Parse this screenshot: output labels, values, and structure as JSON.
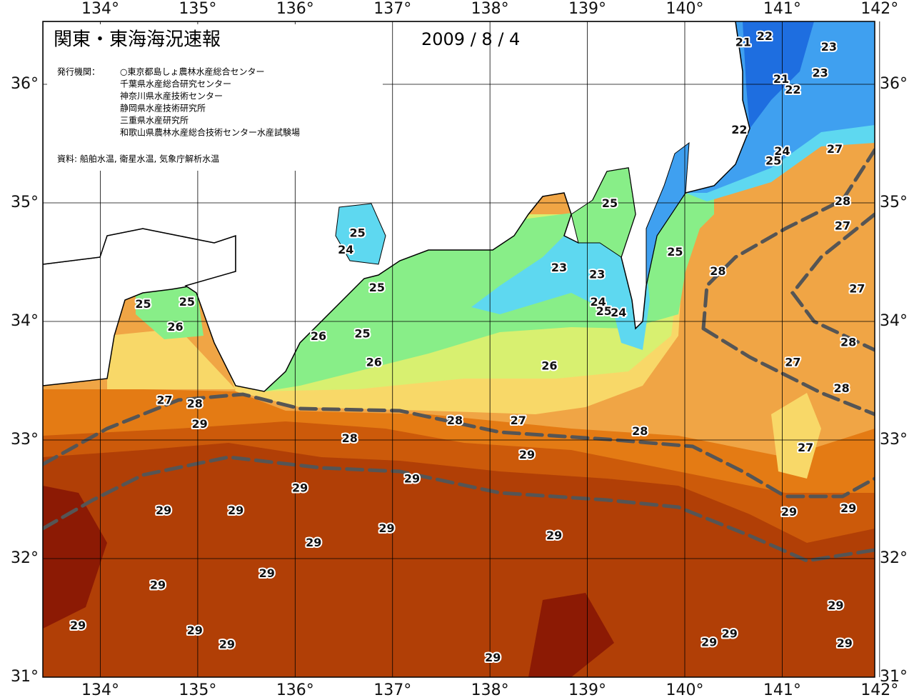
{
  "header": {
    "title": "関東・東海海況速報",
    "date": "2009 / 8 / 4",
    "publisher_label": "発行機関：",
    "publishers": [
      "○東京都島しょ農林水産総合センター",
      "千葉県水産総合研究センター",
      "神奈川県水産技術センター",
      "静岡県水産技術研究所",
      "三重県水産研究所",
      "和歌山県農林水産総合技術センター水産試験場"
    ],
    "source": "資料: 船舶水温, 衛星水温, 気象庁解析水温"
  },
  "map": {
    "xlim": [
      133.41,
      141.95
    ],
    "ylim": [
      31.0,
      36.53
    ],
    "grid": true,
    "xticks": [
      {
        "value": 134,
        "label": "134°"
      },
      {
        "value": 135,
        "label": "135°"
      },
      {
        "value": 136,
        "label": "136°"
      },
      {
        "value": 137,
        "label": "137°"
      },
      {
        "value": 138,
        "label": "138°"
      },
      {
        "value": 139,
        "label": "139°"
      },
      {
        "value": 140,
        "label": "140°"
      },
      {
        "value": 141,
        "label": "141°"
      },
      {
        "value": 142,
        "label": "142°"
      }
    ],
    "yticks": [
      {
        "value": 31,
        "label": "31°"
      },
      {
        "value": 32,
        "label": "32°"
      },
      {
        "value": 33,
        "label": "33°"
      },
      {
        "value": 34,
        "label": "34°"
      },
      {
        "value": 35,
        "label": "35°"
      },
      {
        "value": 36,
        "label": "36°"
      }
    ],
    "contour_labels": [
      {
        "text": "21",
        "lon": 140.6,
        "lat": 36.35
      },
      {
        "text": "22",
        "lon": 140.82,
        "lat": 36.4
      },
      {
        "text": "23",
        "lon": 141.48,
        "lat": 36.31
      },
      {
        "text": "23",
        "lon": 141.39,
        "lat": 36.09
      },
      {
        "text": "21",
        "lon": 140.99,
        "lat": 36.04
      },
      {
        "text": "22",
        "lon": 141.11,
        "lat": 35.95
      },
      {
        "text": "22",
        "lon": 140.56,
        "lat": 35.61
      },
      {
        "text": "24",
        "lon": 141.0,
        "lat": 35.43
      },
      {
        "text": "25",
        "lon": 140.91,
        "lat": 35.35
      },
      {
        "text": "27",
        "lon": 141.54,
        "lat": 35.45
      },
      {
        "text": "28",
        "lon": 141.62,
        "lat": 35.01
      },
      {
        "text": "27",
        "lon": 141.62,
        "lat": 34.8
      },
      {
        "text": "27",
        "lon": 141.77,
        "lat": 34.27
      },
      {
        "text": "28",
        "lon": 141.68,
        "lat": 33.82
      },
      {
        "text": "27",
        "lon": 141.11,
        "lat": 33.65
      },
      {
        "text": "28",
        "lon": 141.61,
        "lat": 33.43
      },
      {
        "text": "27",
        "lon": 141.24,
        "lat": 32.93
      },
      {
        "text": "29",
        "lon": 141.07,
        "lat": 32.39
      },
      {
        "text": "29",
        "lon": 141.68,
        "lat": 32.42
      },
      {
        "text": "28",
        "lon": 140.34,
        "lat": 34.42
      },
      {
        "text": "25",
        "lon": 139.9,
        "lat": 34.58
      },
      {
        "text": "25",
        "lon": 139.23,
        "lat": 34.99
      },
      {
        "text": "23",
        "lon": 138.71,
        "lat": 34.45
      },
      {
        "text": "23",
        "lon": 139.1,
        "lat": 34.39
      },
      {
        "text": "24",
        "lon": 139.11,
        "lat": 34.16
      },
      {
        "text": "25",
        "lon": 139.17,
        "lat": 34.08
      },
      {
        "text": "24",
        "lon": 139.32,
        "lat": 34.07
      },
      {
        "text": "26",
        "lon": 138.61,
        "lat": 33.62
      },
      {
        "text": "27",
        "lon": 138.29,
        "lat": 33.16
      },
      {
        "text": "28",
        "lon": 137.64,
        "lat": 33.16
      },
      {
        "text": "28",
        "lon": 139.54,
        "lat": 33.07
      },
      {
        "text": "29",
        "lon": 138.38,
        "lat": 32.87
      },
      {
        "text": "29",
        "lon": 137.2,
        "lat": 32.67
      },
      {
        "text": "28",
        "lon": 136.56,
        "lat": 33.01
      },
      {
        "text": "29",
        "lon": 136.05,
        "lat": 32.59
      },
      {
        "text": "25",
        "lon": 136.69,
        "lat": 33.89
      },
      {
        "text": "26",
        "lon": 136.81,
        "lat": 33.65
      },
      {
        "text": "26",
        "lon": 136.24,
        "lat": 33.87
      },
      {
        "text": "25",
        "lon": 136.84,
        "lat": 34.28
      },
      {
        "text": "25",
        "lon": 136.64,
        "lat": 34.74
      },
      {
        "text": "24",
        "lon": 136.52,
        "lat": 34.6
      },
      {
        "text": "25",
        "lon": 134.89,
        "lat": 34.16
      },
      {
        "text": "25",
        "lon": 134.44,
        "lat": 34.14
      },
      {
        "text": "26",
        "lon": 134.77,
        "lat": 33.95
      },
      {
        "text": "27",
        "lon": 134.66,
        "lat": 33.33
      },
      {
        "text": "28",
        "lon": 134.97,
        "lat": 33.3
      },
      {
        "text": "29",
        "lon": 135.02,
        "lat": 33.13
      },
      {
        "text": "29",
        "lon": 134.65,
        "lat": 32.4
      },
      {
        "text": "29",
        "lon": 135.39,
        "lat": 32.4
      },
      {
        "text": "29",
        "lon": 136.94,
        "lat": 32.25
      },
      {
        "text": "29",
        "lon": 136.19,
        "lat": 32.13
      },
      {
        "text": "29",
        "lon": 138.66,
        "lat": 32.19
      },
      {
        "text": "29",
        "lon": 135.71,
        "lat": 31.87
      },
      {
        "text": "29",
        "lon": 134.59,
        "lat": 31.77
      },
      {
        "text": "29",
        "lon": 133.77,
        "lat": 31.43
      },
      {
        "text": "29",
        "lon": 134.97,
        "lat": 31.39
      },
      {
        "text": "29",
        "lon": 135.3,
        "lat": 31.27
      },
      {
        "text": "29",
        "lon": 138.03,
        "lat": 31.16
      },
      {
        "text": "29",
        "lon": 140.25,
        "lat": 31.29
      },
      {
        "text": "29",
        "lon": 140.46,
        "lat": 31.36
      },
      {
        "text": "29",
        "lon": 141.55,
        "lat": 31.6
      },
      {
        "text": "29",
        "lon": 141.64,
        "lat": 31.28
      }
    ]
  }
}
